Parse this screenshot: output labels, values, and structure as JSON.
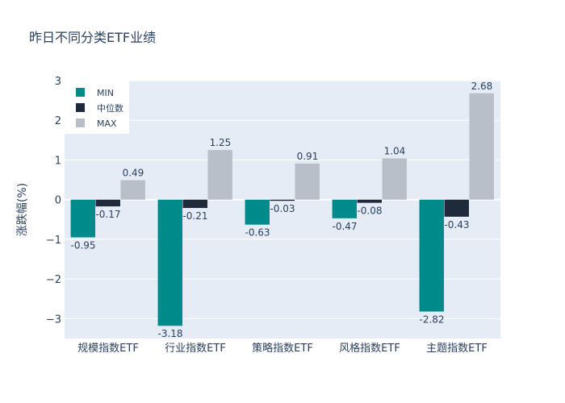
{
  "title": "昨日不同分类ETF业绩",
  "chart_data": {
    "type": "bar",
    "title": "昨日不同分类ETF业绩",
    "xlabel": "",
    "ylabel": "涨跌幅(%)",
    "categories": [
      "规模指数ETF",
      "行业指数ETF",
      "策略指数ETF",
      "风格指数ETF",
      "主题指数ETF"
    ],
    "series": [
      {
        "name": "MIN",
        "color": "#008b8b",
        "values": [
          -0.95,
          -3.18,
          -0.63,
          -0.47,
          -2.82
        ]
      },
      {
        "name": "中位数",
        "color": "#1f2a3c",
        "values": [
          -0.17,
          -0.21,
          -0.03,
          -0.08,
          -0.43
        ]
      },
      {
        "name": "MAX",
        "color": "#b8bfc8",
        "values": [
          0.49,
          1.25,
          0.91,
          1.04,
          2.68
        ]
      }
    ],
    "ylim": [
      -3.5,
      3.0
    ],
    "yticks": [
      3,
      2,
      1,
      0,
      -1,
      -2,
      -3
    ],
    "ytick_labels": [
      "3",
      "2",
      "1",
      "0",
      "−1",
      "−2",
      "−3"
    ],
    "grid": true,
    "legend_position": "top-left",
    "plot_background": "#e5ecf6"
  }
}
